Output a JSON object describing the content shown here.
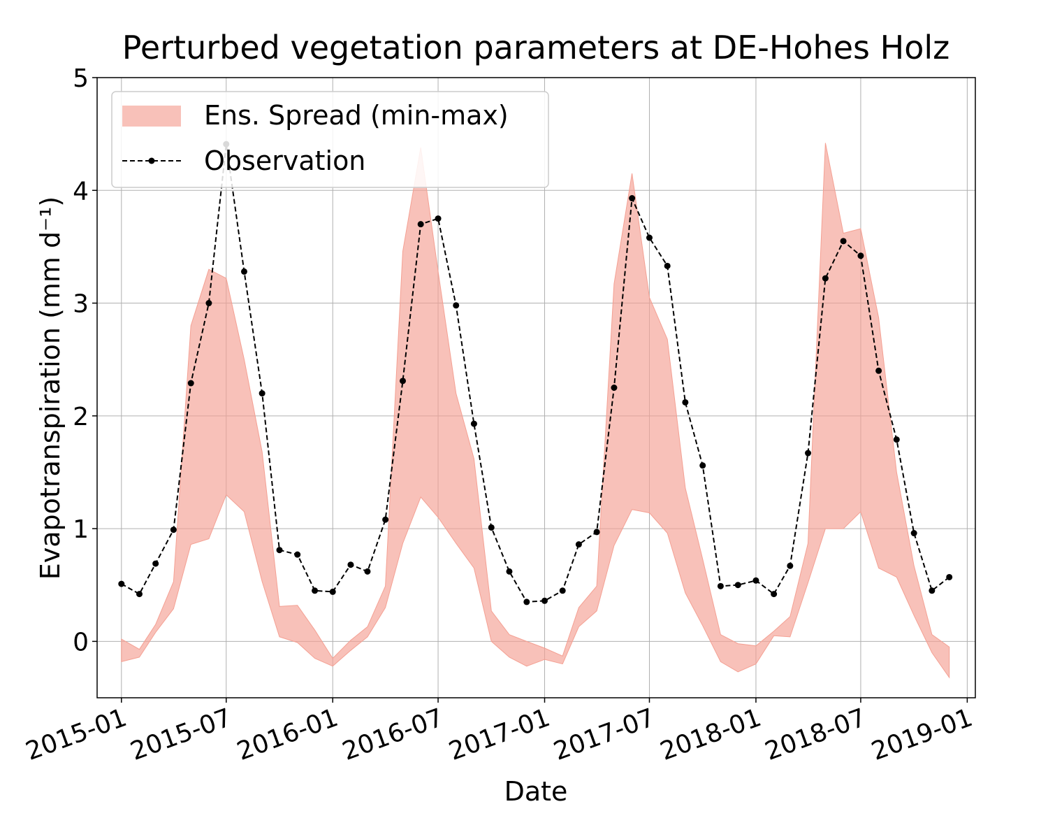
{
  "chart_data": {
    "type": "line",
    "title": "Perturbed vegetation parameters at DE-Hohes Holz",
    "xlabel": "Date",
    "ylabel": "Evapotranspiration  (mm d⁻¹)",
    "ylim": [
      -0.5,
      5
    ],
    "xlim": [
      "2014-11-20",
      "2019-01-15"
    ],
    "yticks": [
      0,
      1,
      2,
      3,
      4,
      5
    ],
    "xticks": [
      "2015-01",
      "2015-07",
      "2016-01",
      "2016-07",
      "2017-01",
      "2017-07",
      "2018-01",
      "2018-07",
      "2019-01"
    ],
    "grid": true,
    "legend": {
      "position": "top-left",
      "entries": [
        "Ens. Spread (min-max)",
        "Observation"
      ]
    },
    "series": [
      {
        "name": "Observation",
        "style": "dashed-line-with-dots",
        "color": "#000000",
        "x": [
          "2015-01",
          "2015-02",
          "2015-03",
          "2015-04",
          "2015-05",
          "2015-06",
          "2015-07",
          "2015-08",
          "2015-09",
          "2015-10",
          "2015-11",
          "2015-12",
          "2016-01",
          "2016-02",
          "2016-03",
          "2016-04",
          "2016-05",
          "2016-06",
          "2016-07",
          "2016-08",
          "2016-09",
          "2016-10",
          "2016-11",
          "2016-12",
          "2017-01",
          "2017-02",
          "2017-03",
          "2017-04",
          "2017-05",
          "2017-06",
          "2017-07",
          "2017-08",
          "2017-09",
          "2017-10",
          "2017-11",
          "2017-12",
          "2018-01",
          "2018-02",
          "2018-03",
          "2018-04",
          "2018-05",
          "2018-06",
          "2018-07",
          "2018-08",
          "2018-09",
          "2018-10",
          "2018-11",
          "2018-12"
        ],
        "values": [
          0.51,
          0.42,
          0.69,
          0.99,
          2.29,
          3.0,
          4.41,
          3.28,
          2.2,
          0.81,
          0.77,
          0.45,
          0.44,
          0.68,
          0.62,
          1.08,
          2.31,
          3.7,
          3.75,
          2.98,
          1.93,
          1.01,
          0.62,
          0.35,
          0.36,
          0.45,
          0.86,
          0.97,
          2.25,
          3.93,
          3.58,
          3.33,
          2.12,
          1.56,
          0.49,
          0.5,
          0.54,
          0.42,
          0.67,
          1.67,
          3.22,
          3.55,
          3.42,
          2.4,
          1.79,
          0.96,
          0.45,
          0.57
        ]
      },
      {
        "name": "Ens. Spread (min-max)",
        "style": "filled-band",
        "color": "#f4a093",
        "x": [
          "2015-01",
          "2015-02",
          "2015-03",
          "2015-04",
          "2015-05",
          "2015-06",
          "2015-07",
          "2015-08",
          "2015-09",
          "2015-10",
          "2015-11",
          "2015-12",
          "2016-01",
          "2016-02",
          "2016-03",
          "2016-04",
          "2016-05",
          "2016-06",
          "2016-07",
          "2016-08",
          "2016-09",
          "2016-10",
          "2016-11",
          "2016-12",
          "2017-01",
          "2017-02",
          "2017-03",
          "2017-04",
          "2017-05",
          "2017-06",
          "2017-07",
          "2017-08",
          "2017-09",
          "2017-10",
          "2017-11",
          "2017-12",
          "2018-01",
          "2018-02",
          "2018-03",
          "2018-04",
          "2018-05",
          "2018-06",
          "2018-07",
          "2018-08",
          "2018-09",
          "2018-10",
          "2018-11",
          "2018-12"
        ],
        "upper": [
          0.02,
          -0.07,
          0.15,
          0.53,
          2.8,
          3.3,
          3.22,
          2.5,
          1.68,
          0.31,
          0.32,
          0.1,
          -0.15,
          0.01,
          0.13,
          0.49,
          3.46,
          4.38,
          3.28,
          2.2,
          1.62,
          0.27,
          0.06,
          0.0,
          -0.06,
          -0.13,
          0.3,
          0.49,
          3.17,
          4.15,
          3.05,
          2.68,
          1.36,
          0.73,
          0.06,
          -0.02,
          -0.04,
          0.09,
          0.22,
          0.87,
          4.42,
          3.62,
          3.66,
          2.87,
          1.5,
          0.67,
          0.06,
          -0.05
        ],
        "lower": [
          -0.18,
          -0.14,
          0.08,
          0.29,
          0.86,
          0.91,
          1.3,
          1.15,
          0.53,
          0.04,
          -0.01,
          -0.15,
          -0.22,
          -0.08,
          0.04,
          0.3,
          0.87,
          1.28,
          1.1,
          0.87,
          0.65,
          0.0,
          -0.14,
          -0.22,
          -0.16,
          -0.2,
          0.13,
          0.27,
          0.85,
          1.17,
          1.14,
          0.96,
          0.43,
          0.14,
          -0.18,
          -0.27,
          -0.2,
          0.05,
          0.04,
          0.52,
          1.0,
          1.0,
          1.15,
          0.65,
          0.57,
          0.23,
          -0.1,
          -0.32
        ]
      }
    ]
  }
}
